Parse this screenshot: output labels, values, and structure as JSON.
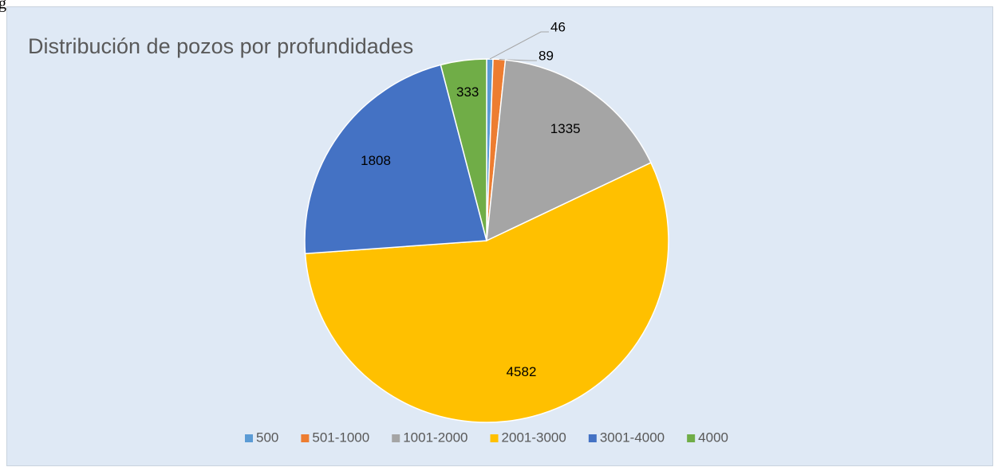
{
  "fragment": "g",
  "chart_data": {
    "type": "pie",
    "title": "Distribución de pozos por profundidades",
    "categories": [
      "500",
      "501-1000",
      "1001-2000",
      "2001-3000",
      "3001-4000",
      "4000"
    ],
    "values": [
      46,
      89,
      1335,
      4582,
      1808,
      333
    ],
    "colors": [
      "#5b9bd5",
      "#ed7d31",
      "#a5a5a5",
      "#ffc000",
      "#4472c4",
      "#70ad47"
    ],
    "legend": "bottom"
  }
}
